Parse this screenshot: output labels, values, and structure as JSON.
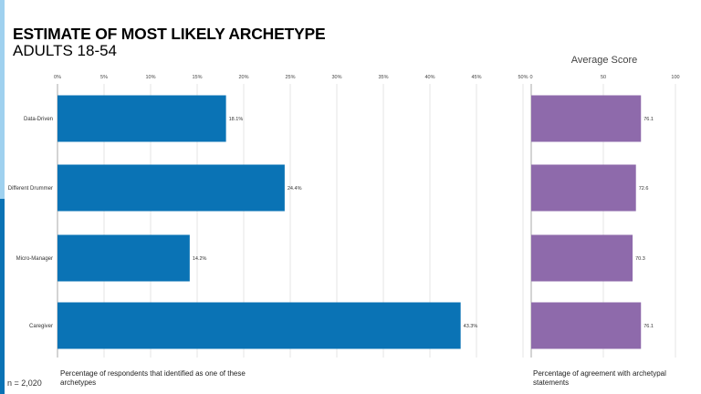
{
  "title": "ESTIMATE OF MOST LIKELY ARCHETYPE",
  "subtitle": "ADULTS 18-54",
  "sample_size": "n = 2,020",
  "colors": {
    "left_bars": "#0a73b5",
    "right_bars": "#8e6aab",
    "accent_light": "#9fd1ef",
    "accent_dark": "#0a73b5"
  },
  "chart_data": [
    {
      "type": "bar",
      "orientation": "horizontal",
      "categories": [
        "Data-Driven",
        "Different Drummer",
        "Micro-Manager",
        "Caregiver"
      ],
      "values": [
        18.1,
        24.4,
        14.2,
        43.3
      ],
      "data_labels": [
        "18.1%",
        "24.4%",
        "14.2%",
        "43.3%"
      ],
      "xlim": [
        0,
        50
      ],
      "x_ticks": [
        0,
        5,
        10,
        15,
        20,
        25,
        30,
        35,
        40,
        45,
        50
      ],
      "x_tick_labels": [
        "0%",
        "5%",
        "10%",
        "15%",
        "20%",
        "25%",
        "30%",
        "35%",
        "40%",
        "45%",
        "50%"
      ],
      "xlabel": "Percentage of respondents that identified as one of these archetypes",
      "grid": true
    },
    {
      "type": "bar",
      "orientation": "horizontal",
      "title": "Average Score",
      "categories": [
        "Data-Driven",
        "Different Drummer",
        "Micro-Manager",
        "Caregiver"
      ],
      "values": [
        76.1,
        72.6,
        70.3,
        76.1
      ],
      "data_labels": [
        "76.1",
        "72.6",
        "70.3",
        "76.1"
      ],
      "xlim": [
        0,
        100
      ],
      "x_ticks": [
        0,
        50,
        100
      ],
      "x_tick_labels": [
        "0",
        "50",
        "100"
      ],
      "xlabel": "Percentage of agreement with archetypal statements",
      "grid": true
    }
  ]
}
